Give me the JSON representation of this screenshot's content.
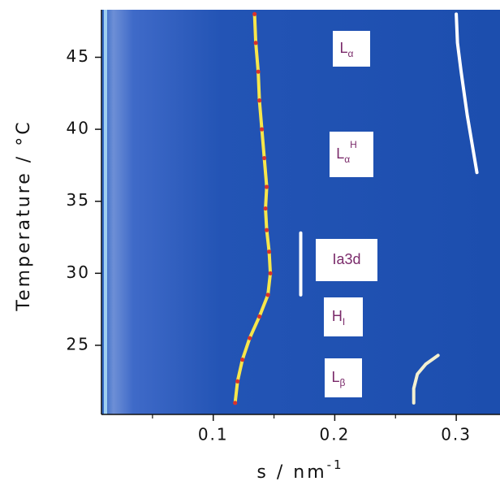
{
  "chart_data": {
    "type": "line",
    "xlabel": "s / nm",
    "xlabel_sup": "-1",
    "ylabel": "Temperature / °C",
    "xlim": [
      0.008,
      0.336
    ],
    "xticks": [
      0.1,
      0.2,
      0.3
    ],
    "xminorticks": [
      0.05,
      0.15,
      0.25
    ],
    "ylim": [
      20.2,
      48.3
    ],
    "yticks": [
      25,
      30,
      35,
      40,
      45
    ],
    "series": [
      {
        "color": "#f7e64a",
        "marker_color": "#d8342c",
        "x": [
          0.118,
          0.12,
          0.124,
          0.13,
          0.138,
          0.145,
          0.147,
          0.146,
          0.144,
          0.143,
          0.144,
          0.142,
          0.14,
          0.138,
          0.137,
          0.135,
          0.134
        ],
        "values": [
          21,
          22.5,
          24,
          25.5,
          27,
          28.5,
          30,
          31.5,
          33,
          34.5,
          36,
          38,
          40,
          42,
          44,
          46,
          48
        ]
      },
      {
        "color": "#f4f0d0",
        "x": [
          0.265,
          0.265,
          0.268,
          0.275,
          0.285
        ],
        "values": [
          21,
          22,
          23,
          23.7,
          24.3
        ]
      },
      {
        "color": "#ffffff",
        "x": [
          0.3,
          0.301,
          0.304,
          0.309,
          0.313,
          0.317
        ],
        "values": [
          48,
          46,
          44,
          41,
          39,
          37
        ]
      },
      {
        "color": "#ffffff",
        "x": [
          0.172,
          0.172
        ],
        "values": [
          28.5,
          32.8
        ]
      }
    ],
    "phase_labels": [
      {
        "text": "L",
        "sub": "α"
      },
      {
        "text": "L",
        "sub": "α",
        "sup": "H"
      },
      {
        "text": "Ia3d"
      },
      {
        "text": "H",
        "sub": "I"
      },
      {
        "text": "L",
        "sub": "β"
      }
    ]
  }
}
